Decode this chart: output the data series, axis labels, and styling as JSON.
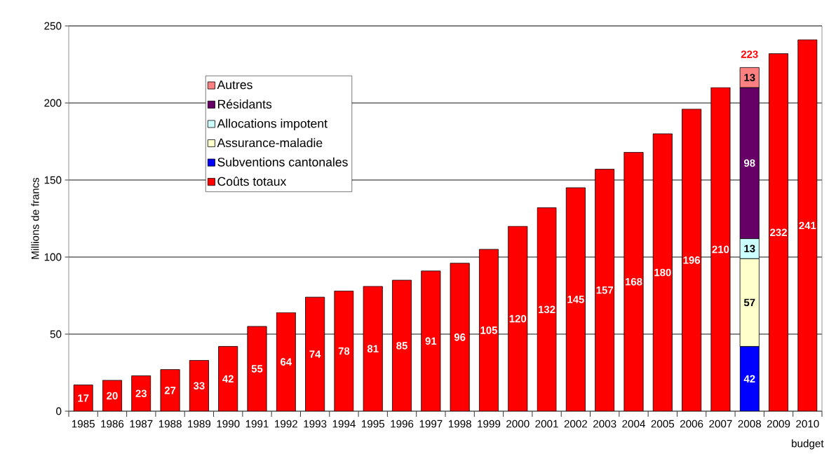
{
  "chart_data": {
    "type": "bar",
    "stacked": true,
    "ylabel": "Millions de francs",
    "categories": [
      "1985",
      "1986",
      "1987",
      "1988",
      "1989",
      "1990",
      "1991",
      "1992",
      "1993",
      "1994",
      "1995",
      "1996",
      "1997",
      "1998",
      "1999",
      "2000",
      "2001",
      "2002",
      "2003",
      "2004",
      "2005",
      "2006",
      "2007",
      "2008",
      "2009",
      "2010 budget"
    ],
    "series": [
      {
        "name": "Coûts totaux",
        "color": "#ff0000",
        "values": [
          17,
          20,
          23,
          27,
          33,
          42,
          55,
          64,
          74,
          78,
          81,
          85,
          91,
          96,
          105,
          120,
          132,
          145,
          157,
          168,
          180,
          196,
          210,
          null,
          232,
          241
        ]
      },
      {
        "name": "Subventions cantonales",
        "color": "#0000ff",
        "values": [
          null,
          null,
          null,
          null,
          null,
          null,
          null,
          null,
          null,
          null,
          null,
          null,
          null,
          null,
          null,
          null,
          null,
          null,
          null,
          null,
          null,
          null,
          null,
          42,
          null,
          null
        ]
      },
      {
        "name": "Assurance-maladie",
        "color": "#ffffcc",
        "values": [
          null,
          null,
          null,
          null,
          null,
          null,
          null,
          null,
          null,
          null,
          null,
          null,
          null,
          null,
          null,
          null,
          null,
          null,
          null,
          null,
          null,
          null,
          null,
          57,
          null,
          null
        ]
      },
      {
        "name": "Allocations impotent",
        "color": "#ccffff",
        "values": [
          null,
          null,
          null,
          null,
          null,
          null,
          null,
          null,
          null,
          null,
          null,
          null,
          null,
          null,
          null,
          null,
          null,
          null,
          null,
          null,
          null,
          null,
          null,
          13,
          null,
          null
        ]
      },
      {
        "name": "Résidants",
        "color": "#660066",
        "values": [
          null,
          null,
          null,
          null,
          null,
          null,
          null,
          null,
          null,
          null,
          null,
          null,
          null,
          null,
          null,
          null,
          null,
          null,
          null,
          null,
          null,
          null,
          null,
          98,
          null,
          null
        ]
      },
      {
        "name": "Autres",
        "color": "#ff8080",
        "values": [
          null,
          null,
          null,
          null,
          null,
          null,
          null,
          null,
          null,
          null,
          null,
          null,
          null,
          null,
          null,
          null,
          null,
          null,
          null,
          null,
          null,
          null,
          null,
          13,
          null,
          null
        ]
      }
    ],
    "totals": [
      null,
      null,
      null,
      null,
      null,
      null,
      null,
      null,
      null,
      null,
      null,
      null,
      null,
      null,
      null,
      null,
      null,
      null,
      null,
      null,
      null,
      null,
      null,
      "223",
      null,
      null
    ],
    "ylim": [
      0,
      250
    ],
    "yticks": [
      0,
      50,
      100,
      150,
      200,
      250
    ],
    "grid": "y",
    "legend": "top left",
    "data_labels": true
  }
}
